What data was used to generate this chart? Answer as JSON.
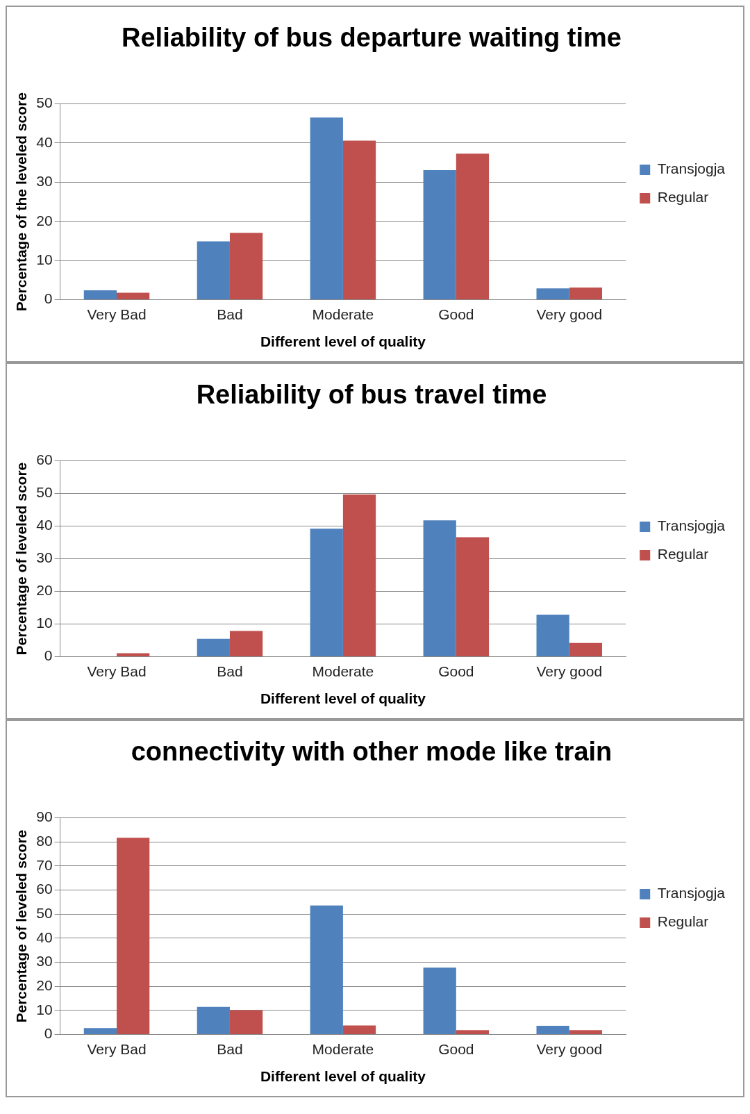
{
  "chart_data": [
    {
      "type": "bar",
      "title": "Reliability of bus departure waiting time",
      "xlabel": "Different level of quality",
      "ylabel": "Percentage of the leveled score",
      "categories": [
        "Very Bad",
        "Bad",
        "Moderate",
        "Good",
        "Very good"
      ],
      "series": [
        {
          "name": "Transjogja",
          "color": "#4f81bd",
          "values": [
            2.4,
            14.9,
            46.5,
            33.1,
            2.9
          ]
        },
        {
          "name": "Regular",
          "color": "#c0504d",
          "values": [
            1.8,
            17.1,
            40.6,
            37.3,
            3.1
          ]
        }
      ],
      "ylim": [
        0,
        50
      ],
      "yticks": [
        0,
        10,
        20,
        30,
        40,
        50
      ],
      "grid": "y",
      "legend": "right"
    },
    {
      "type": "bar",
      "title": "Reliability of bus travel time",
      "xlabel": "Different level of quality",
      "ylabel": "Percentage of leveled score",
      "categories": [
        "Very Bad",
        "Bad",
        "Moderate",
        "Good",
        "Very good"
      ],
      "series": [
        {
          "name": "Transjogja",
          "color": "#4f81bd",
          "values": [
            0,
            5.5,
            39.2,
            41.8,
            12.9
          ]
        },
        {
          "name": "Regular",
          "color": "#c0504d",
          "values": [
            1.1,
            7.9,
            49.7,
            36.6,
            4.2
          ]
        }
      ],
      "ylim": [
        0,
        60
      ],
      "yticks": [
        0,
        10,
        20,
        30,
        40,
        50,
        60
      ],
      "grid": "y",
      "legend": "right"
    },
    {
      "type": "bar",
      "title": "connectivity with other mode like train",
      "xlabel": "Different level of quality",
      "ylabel": "Percentage of leveled score",
      "categories": [
        "Very Bad",
        "Bad",
        "Moderate",
        "Good",
        "Very good"
      ],
      "series": [
        {
          "name": "Transjogja",
          "color": "#4f81bd",
          "values": [
            2.7,
            11.5,
            53.6,
            27.8,
            3.6
          ]
        },
        {
          "name": "Regular",
          "color": "#c0504d",
          "values": [
            81.7,
            10.1,
            3.8,
            1.8,
            1.8
          ]
        }
      ],
      "ylim": [
        0,
        90
      ],
      "yticks": [
        0,
        10,
        20,
        30,
        40,
        50,
        60,
        70,
        80,
        90
      ],
      "grid": "y",
      "legend": "right"
    }
  ]
}
